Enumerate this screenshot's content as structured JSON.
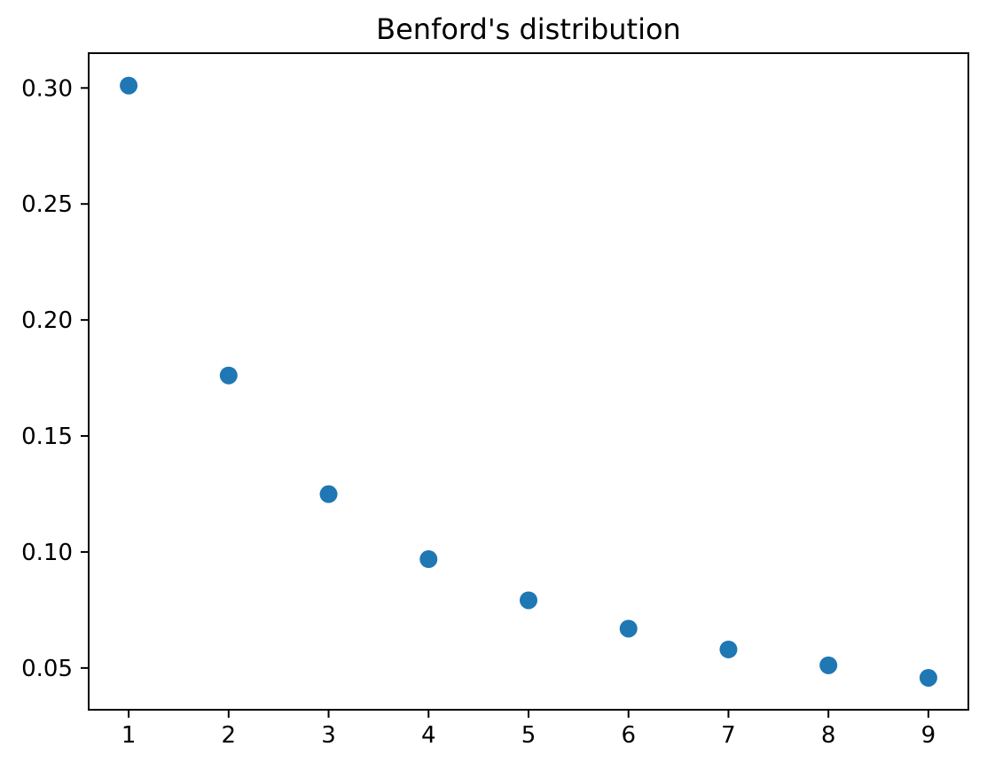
{
  "figure": {
    "background": "#ffffff"
  },
  "chart_data": {
    "type": "scatter",
    "title": "Benford's distribution",
    "xlabel": "",
    "ylabel": "",
    "x": [
      1,
      2,
      3,
      4,
      5,
      6,
      7,
      8,
      9
    ],
    "y": [
      0.30103,
      0.17609,
      0.12494,
      0.09691,
      0.07918,
      0.06695,
      0.05799,
      0.05115,
      0.04576
    ],
    "xlim": [
      0.6,
      9.4
    ],
    "ylim": [
      0.032,
      0.315
    ],
    "x_ticks": {
      "values": [
        1,
        2,
        3,
        4,
        5,
        6,
        7,
        8,
        9
      ],
      "labels": [
        "1",
        "2",
        "3",
        "4",
        "5",
        "6",
        "7",
        "8",
        "9"
      ]
    },
    "y_ticks": {
      "values": [
        0.3,
        0.25,
        0.2,
        0.15,
        0.1,
        0.05
      ],
      "labels": [
        "0.30",
        "0.25",
        "0.20",
        "0.15",
        "0.10",
        "0.05"
      ]
    },
    "grid": false,
    "legend_position": "none",
    "marker": {
      "shape": "circle",
      "color": "#1f77b4",
      "radius_px": 10
    },
    "axes_color": "#000000",
    "text_color": "#000000"
  }
}
